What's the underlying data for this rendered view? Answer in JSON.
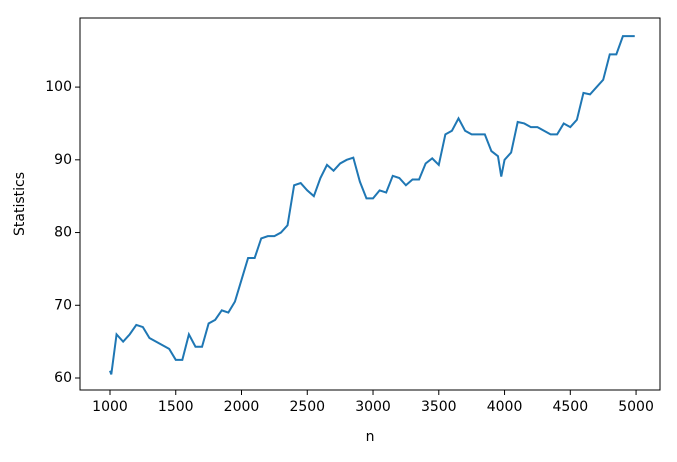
{
  "chart_data": {
    "type": "line",
    "xlabel": "n",
    "ylabel": "Statistics",
    "x": [
      1000,
      1010,
      1050,
      1100,
      1150,
      1200,
      1250,
      1300,
      1350,
      1400,
      1450,
      1500,
      1550,
      1600,
      1650,
      1700,
      1750,
      1800,
      1850,
      1900,
      1950,
      2000,
      2050,
      2100,
      2150,
      2200,
      2250,
      2300,
      2350,
      2400,
      2450,
      2500,
      2550,
      2600,
      2650,
      2700,
      2750,
      2800,
      2850,
      2900,
      2950,
      3000,
      3050,
      3100,
      3150,
      3200,
      3250,
      3300,
      3350,
      3400,
      3450,
      3500,
      3550,
      3600,
      3650,
      3700,
      3750,
      3800,
      3850,
      3900,
      3950,
      3975,
      4000,
      4050,
      4100,
      4150,
      4200,
      4250,
      4300,
      4350,
      4400,
      4450,
      4500,
      4550,
      4600,
      4650,
      4700,
      4750,
      4800,
      4850,
      4900,
      4950,
      4990
    ],
    "series": [
      {
        "name": "Statistics",
        "color": "#1f77b4",
        "values": [
          61,
          60.5,
          66,
          65,
          66,
          67.3,
          67,
          65.5,
          65,
          64.5,
          64,
          62.5,
          62.5,
          66,
          64.3,
          64.3,
          67.5,
          68,
          69.3,
          69,
          70.5,
          73.5,
          76.5,
          76.5,
          79.2,
          79.5,
          79.5,
          80,
          81,
          86.5,
          86.8,
          85.8,
          85,
          87.5,
          89.3,
          88.5,
          89.5,
          90,
          90.3,
          87,
          84.7,
          84.7,
          85.8,
          85.5,
          87.8,
          87.5,
          86.5,
          87.3,
          87.3,
          89.5,
          90.2,
          89.3,
          93.5,
          94,
          95.7,
          94,
          93.5,
          93.5,
          93.5,
          91.2,
          90.5,
          87.7,
          90,
          91,
          95.2,
          95,
          94.5,
          94.5,
          94,
          93.5,
          93.5,
          95,
          94.5,
          95.5,
          99.2,
          99,
          100,
          101,
          104.5,
          104.5,
          107,
          107,
          107
        ]
      }
    ],
    "xlim": [
      772,
      5182
    ],
    "ylim": [
      58.35,
      109.5
    ],
    "xticks": [
      1000,
      1500,
      2000,
      2500,
      3000,
      3500,
      4000,
      4500,
      5000
    ],
    "yticks": [
      60,
      70,
      80,
      90,
      100
    ]
  }
}
